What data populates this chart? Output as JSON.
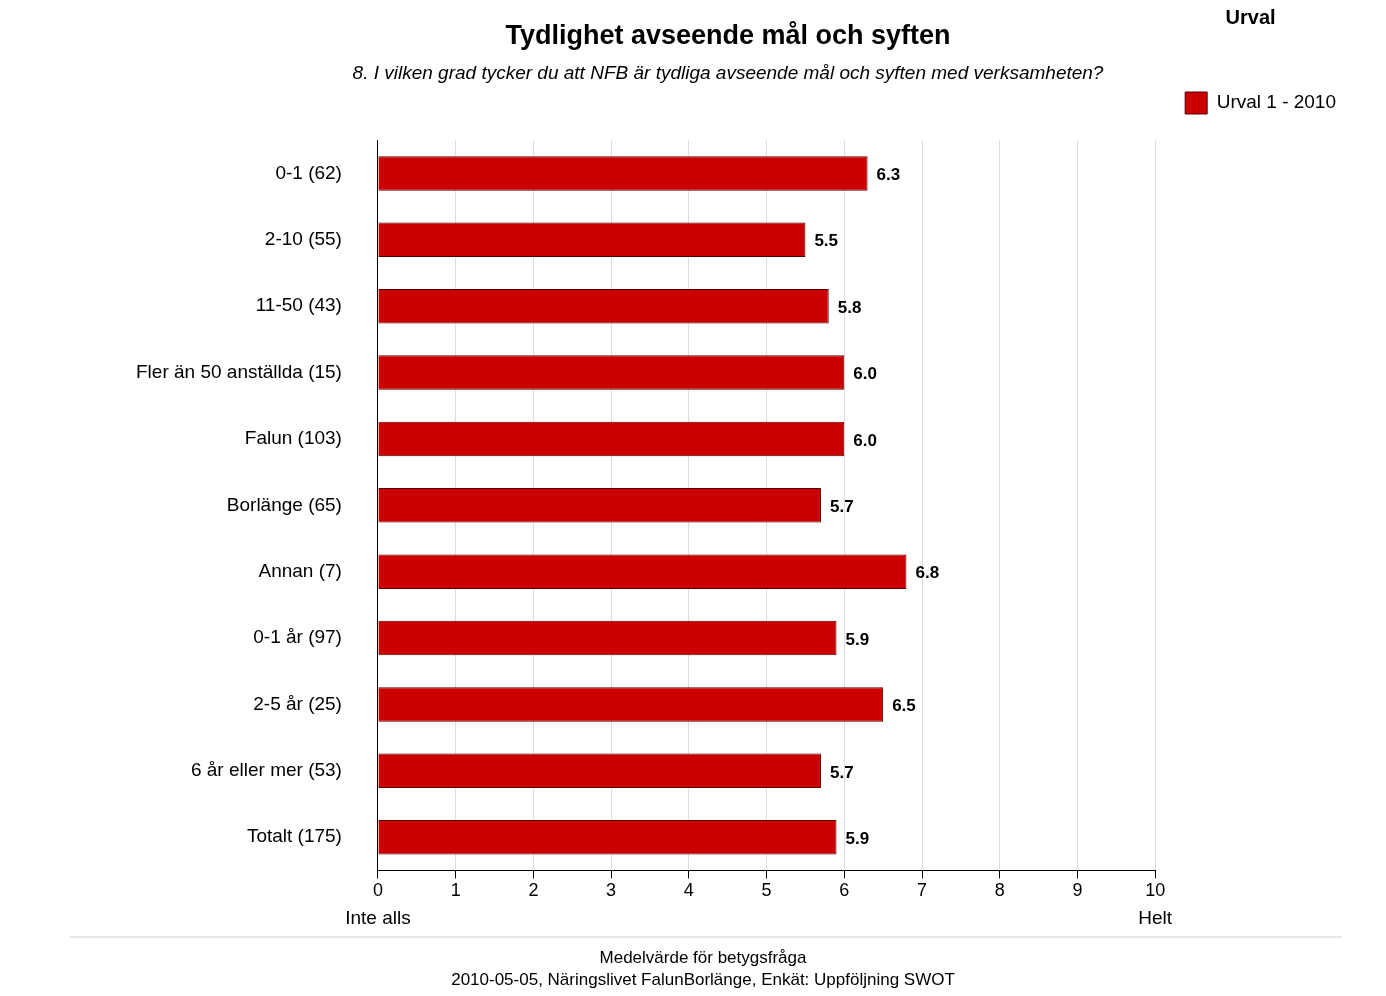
{
  "chart_data": {
    "type": "bar",
    "orientation": "horizontal",
    "title": "Tydlighet avseende mål och syften",
    "subtitle": "8. I vilken grad tycker du att NFB är tydliga avseende mål och syften med verksamheten?",
    "categories": [
      "0-1 (62)",
      "2-10 (55)",
      "11-50 (43)",
      "Fler än 50 anställda (15)",
      "Falun (103)",
      "Borlänge (65)",
      "Annan (7)",
      "0-1 år (97)",
      "2-5 år (25)",
      "6 år eller mer (53)",
      "Totalt (175)"
    ],
    "series": [
      {
        "name": "Urval 1 - 2010",
        "color": "#cc0000",
        "values": [
          6.3,
          5.5,
          5.8,
          6.0,
          6.0,
          5.7,
          6.8,
          5.9,
          6.5,
          5.7,
          5.9
        ],
        "value_labels": [
          "6.3",
          "5.5",
          "5.8",
          "6.0",
          "6.0",
          "5.7",
          "6.8",
          "5.9",
          "6.5",
          "5.7",
          "5.9"
        ]
      }
    ],
    "xlim": [
      0,
      10
    ],
    "xticks": [
      0,
      1,
      2,
      3,
      4,
      5,
      6,
      7,
      8,
      9,
      10
    ],
    "grid": "x",
    "legend": "right",
    "legend_title": "Urval",
    "annotations": [
      "Inte alls",
      "Helt",
      "Medelvärde för betygsfråga",
      "2010-05-05, Näringslivet FalunBorlänge, Enkät: Uppföljning SWOT"
    ]
  }
}
